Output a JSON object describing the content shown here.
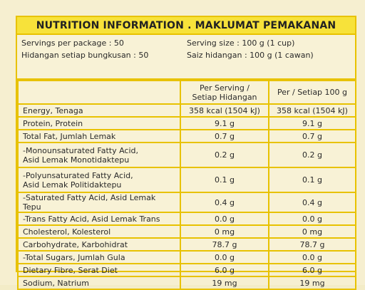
{
  "title": "NUTRITION INFORMATION . MAKLUMAT PEMAKANAN",
  "servings": {
    "per_package": "Servings per package : 50",
    "per_package_ms": "Hidangan setiap bungkusan : 50",
    "size": "Serving size : 100 g (1 cup)",
    "size_ms": "Saiz hidangan : 100 g (1 cawan)"
  },
  "headers": {
    "per_serving": "Per Serving /",
    "per_serving_ms": "Setiap Hidangan",
    "per_100g": "Per / Setiap 100 g"
  },
  "rows": [
    {
      "name": "Energy, Tenaga",
      "name2": "",
      "serving": "358 kcal (1504 kJ)",
      "per100": "358 kcal (1504 kJ)"
    },
    {
      "name": "Protein, Protein",
      "name2": "",
      "serving": "9.1 g",
      "per100": "9.1 g"
    },
    {
      "name": "Total Fat, Jumlah Lemak",
      "name2": "",
      "serving": "0.7 g",
      "per100": "0.7 g"
    },
    {
      "name": "-Monounsaturated  Fatty Acid,",
      "name2": "Asid Lemak Monotidaktepu",
      "serving": "0.2 g",
      "per100": "0.2 g"
    },
    {
      "name": "-Polyunsaturated  Fatty Acid,",
      "name2": "Asid Lemak Politidaktepu",
      "serving": "0.1 g",
      "per100": "0.1 g"
    },
    {
      "name": "-Saturated Fatty Acid, Asid Lemak Tepu",
      "name2": "",
      "serving": "0.4 g",
      "per100": "0.4 g"
    },
    {
      "name": "-Trans Fatty Acid, Asid Lemak Trans",
      "name2": "",
      "serving": "0.0 g",
      "per100": "0.0 g"
    },
    {
      "name": "Cholesterol, Kolesterol",
      "name2": "",
      "serving": "0 mg",
      "per100": "0 mg"
    },
    {
      "name": "Carbohydrate, Karbohidrat",
      "name2": "",
      "serving": "78.7 g",
      "per100": "78.7 g"
    },
    {
      "name": "-Total Sugars, Jumlah Gula",
      "name2": "",
      "serving": "0.0 g",
      "per100": "0.0 g"
    },
    {
      "name": "Dietary Fibre, Serat Diet",
      "name2": "",
      "serving": "6.0 g",
      "per100": "6.0 g"
    },
    {
      "name": "Sodium, Natrium",
      "name2": "",
      "serving": "19 mg",
      "per100": "19 mg"
    }
  ],
  "colors": {
    "border": "#e8c200",
    "title_bg": "#f7e23a",
    "paper": "#f8f2d6"
  }
}
